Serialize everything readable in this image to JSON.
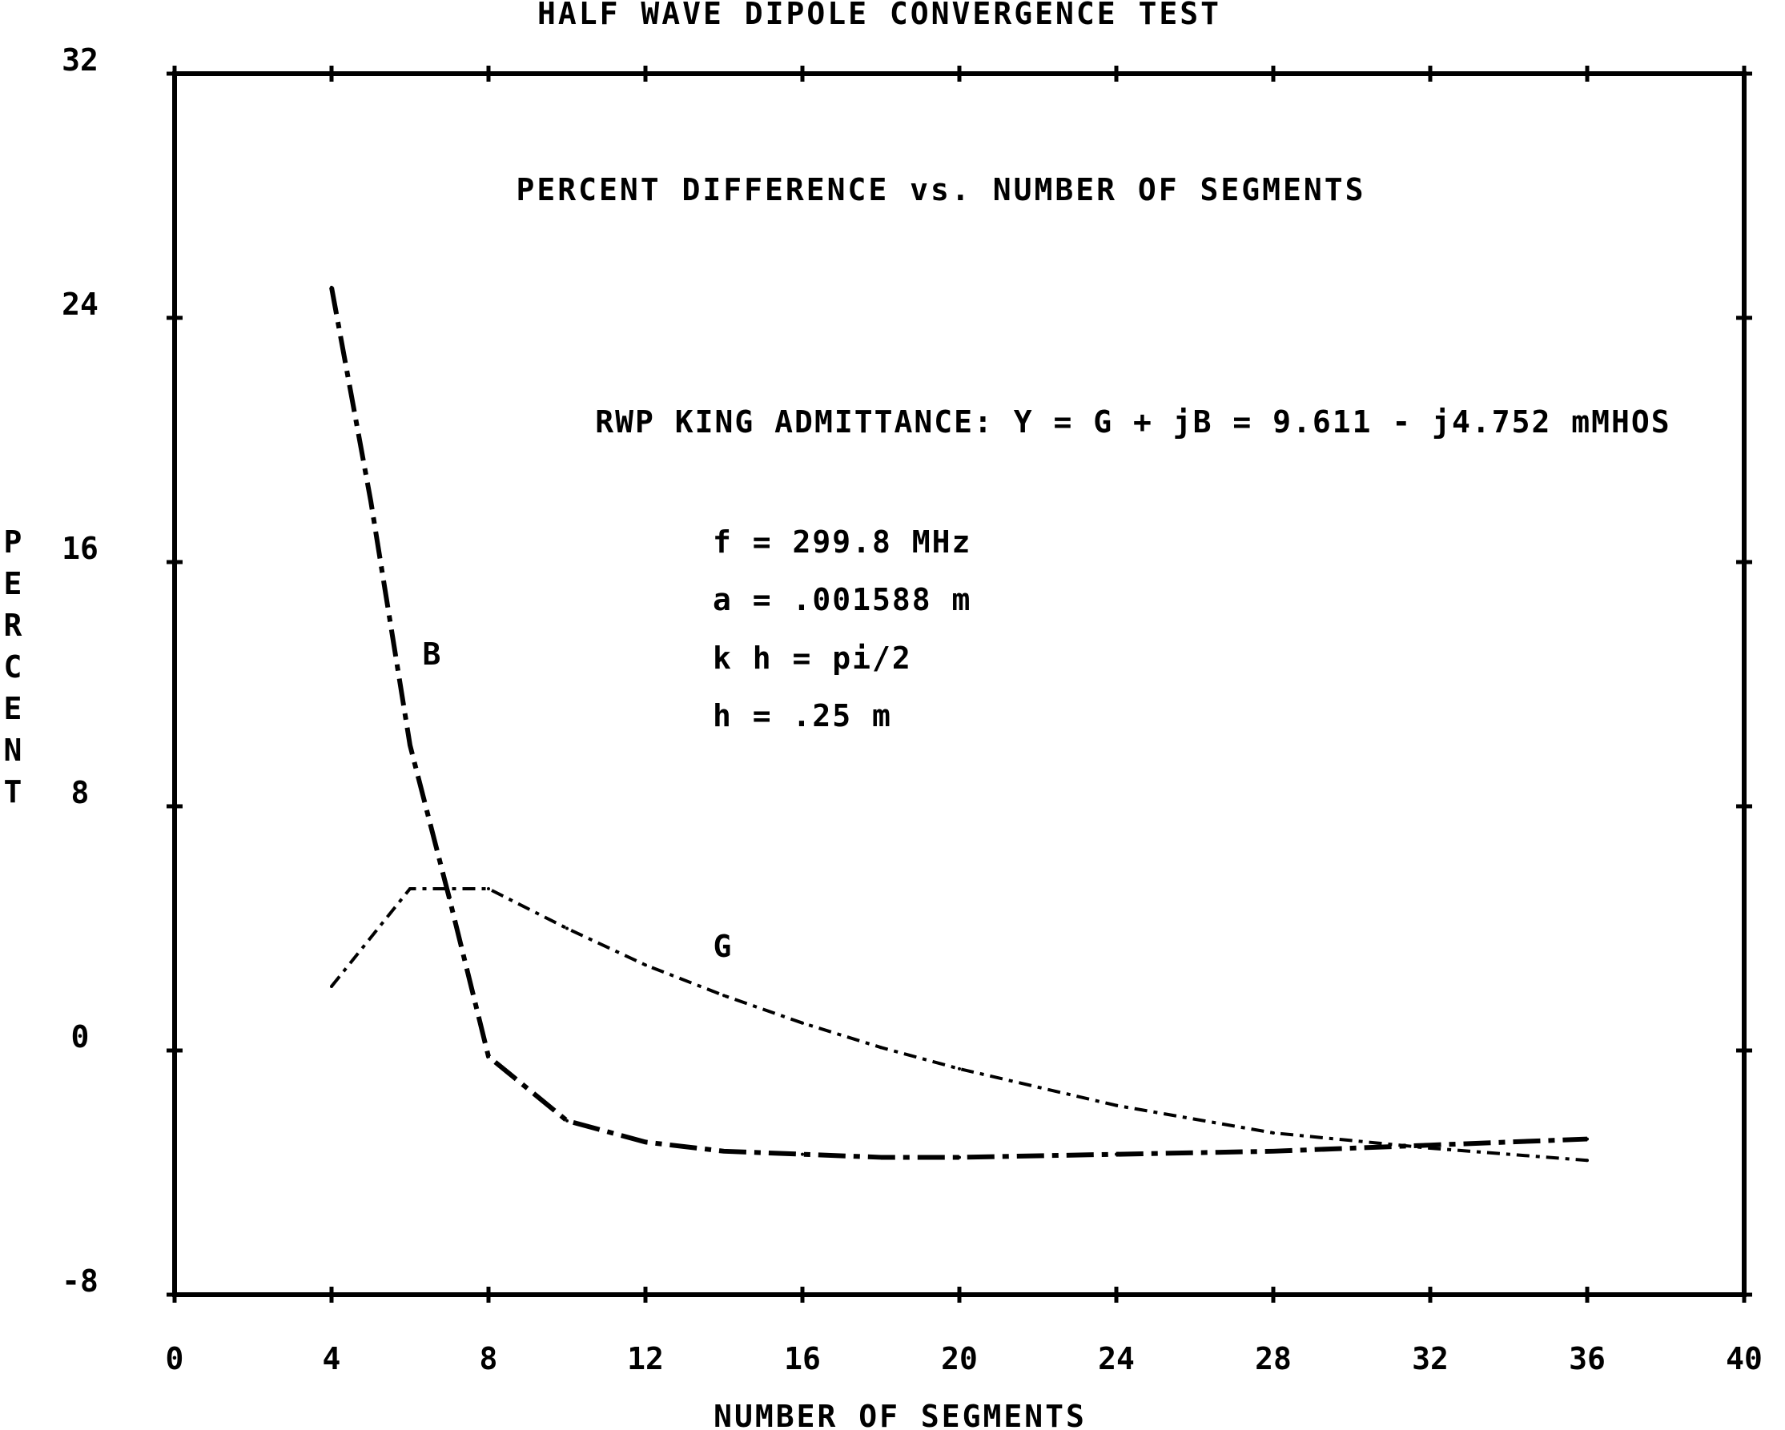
{
  "chart_data": {
    "type": "line",
    "title": "HALF WAVE DIPOLE CONVERGENCE TEST",
    "subtitle": "PERCENT DIFFERENCE vs. NUMBER OF SEGMENTS",
    "xlabel": "NUMBER OF SEGMENTS",
    "ylabel": "PERCENT",
    "xlim": [
      0,
      40
    ],
    "ylim": [
      -8,
      32
    ],
    "xticks": [
      "0",
      "4",
      "8",
      "12",
      "16",
      "20",
      "24",
      "28",
      "32",
      "36",
      "40"
    ],
    "yticks": [
      "-8",
      "0",
      "8",
      "16",
      "24",
      "32"
    ],
    "grid": false,
    "annotations": [
      "RWP KING ADMITTANCE: Y = G + jB = 9.611 - j4.752 mMHOS",
      "f = 299.8 MHz",
      "a = .001588 m",
      "k h = pi/2",
      "h = .25 m"
    ],
    "series": [
      {
        "name": "B",
        "x": [
          4,
          5,
          6,
          7,
          8,
          10,
          12,
          14,
          16,
          18,
          20,
          24,
          28,
          32,
          36
        ],
        "y": [
          25.0,
          18.0,
          10.0,
          5.0,
          -0.2,
          -2.3,
          -3.0,
          -3.3,
          -3.4,
          -3.5,
          -3.5,
          -3.4,
          -3.3,
          -3.1,
          -2.9
        ]
      },
      {
        "name": "G",
        "x": [
          4,
          6,
          8,
          10,
          12,
          14,
          16,
          18,
          20,
          24,
          28,
          32,
          36
        ],
        "y": [
          2.1,
          5.3,
          5.3,
          4.0,
          2.8,
          1.8,
          0.9,
          0.1,
          -0.6,
          -1.8,
          -2.7,
          -3.2,
          -3.6
        ]
      }
    ]
  }
}
